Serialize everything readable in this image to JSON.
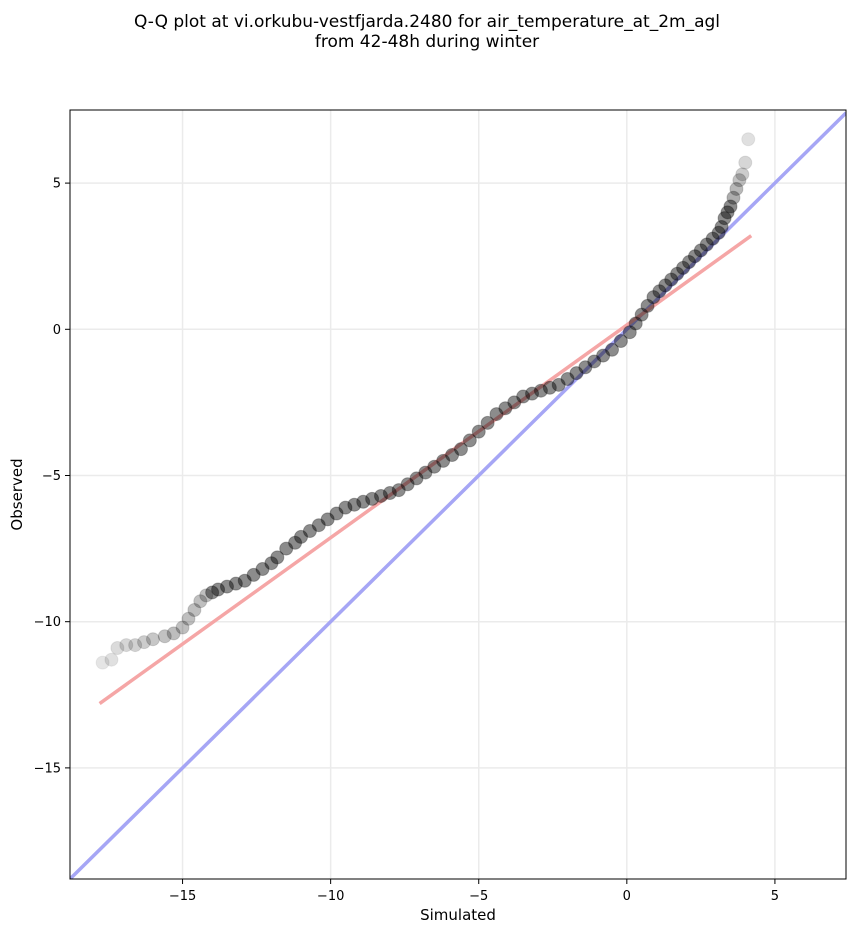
{
  "chart_data": {
    "type": "scatter",
    "title": "Q-Q plot at vi.orkubu-vestfjarda.2480 for air_temperature_at_2m_agl",
    "subtitle": "from 42-48h during winter",
    "xlabel": "Simulated",
    "ylabel": "Observed",
    "xlim": [
      -18.8,
      7.4
    ],
    "ylim": [
      -18.8,
      7.5
    ],
    "xticks": [
      -15,
      -10,
      -5,
      0,
      5
    ],
    "yticks": [
      -15,
      -10,
      -5,
      0,
      5
    ],
    "xtick_labels": [
      "−15",
      "−10",
      "−5",
      "0",
      "5"
    ],
    "ytick_labels": [
      "−15",
      "−10",
      "−5",
      "0",
      "5"
    ],
    "grid": true,
    "lines": [
      {
        "color": "#a6a6f5",
        "x": [
          -18.8,
          7.4
        ],
        "y": [
          -18.8,
          7.4
        ]
      },
      {
        "color": "#f5a6a6",
        "x": [
          -17.8,
          4.2
        ],
        "y": [
          -12.8,
          3.2
        ]
      }
    ],
    "points": {
      "x": [
        -17.7,
        -17.4,
        -17.2,
        -16.9,
        -16.6,
        -16.3,
        -16.0,
        -15.6,
        -15.3,
        -15.0,
        -14.8,
        -14.6,
        -14.4,
        -14.2,
        -14.0,
        -13.8,
        -13.5,
        -13.2,
        -12.9,
        -12.6,
        -12.3,
        -12.0,
        -11.8,
        -11.5,
        -11.2,
        -11.0,
        -10.7,
        -10.4,
        -10.1,
        -9.8,
        -9.5,
        -9.2,
        -8.9,
        -8.6,
        -8.3,
        -8.0,
        -7.7,
        -7.4,
        -7.1,
        -6.8,
        -6.5,
        -6.2,
        -5.9,
        -5.6,
        -5.3,
        -5.0,
        -4.7,
        -4.4,
        -4.1,
        -3.8,
        -3.5,
        -3.2,
        -2.9,
        -2.6,
        -2.3,
        -2.0,
        -1.7,
        -1.4,
        -1.1,
        -0.8,
        -0.5,
        -0.2,
        0.1,
        0.3,
        0.5,
        0.7,
        0.9,
        1.1,
        1.3,
        1.5,
        1.7,
        1.9,
        2.1,
        2.3,
        2.5,
        2.7,
        2.9,
        3.1,
        3.2,
        3.3,
        3.4,
        3.5,
        3.6,
        3.7,
        3.8,
        3.9,
        4.0,
        4.1
      ],
      "y": [
        -11.4,
        -11.3,
        -10.9,
        -10.8,
        -10.8,
        -10.7,
        -10.6,
        -10.5,
        -10.4,
        -10.2,
        -9.9,
        -9.6,
        -9.3,
        -9.1,
        -9.0,
        -8.9,
        -8.8,
        -8.7,
        -8.6,
        -8.4,
        -8.2,
        -8.0,
        -7.8,
        -7.5,
        -7.3,
        -7.1,
        -6.9,
        -6.7,
        -6.5,
        -6.3,
        -6.1,
        -6.0,
        -5.9,
        -5.8,
        -5.7,
        -5.6,
        -5.5,
        -5.3,
        -5.1,
        -4.9,
        -4.7,
        -4.5,
        -4.3,
        -4.1,
        -3.8,
        -3.5,
        -3.2,
        -2.9,
        -2.7,
        -2.5,
        -2.3,
        -2.2,
        -2.1,
        -2.0,
        -1.9,
        -1.7,
        -1.5,
        -1.3,
        -1.1,
        -0.9,
        -0.7,
        -0.4,
        -0.1,
        0.2,
        0.5,
        0.8,
        1.1,
        1.3,
        1.5,
        1.7,
        1.9,
        2.1,
        2.3,
        2.5,
        2.7,
        2.9,
        3.1,
        3.3,
        3.5,
        3.8,
        4.0,
        4.2,
        4.5,
        4.8,
        5.1,
        5.3,
        5.7,
        6.5
      ]
    },
    "colors": {
      "points": "#000000",
      "identity_line": "#a6a6f5",
      "fit_line": "#f5a6a6"
    }
  }
}
